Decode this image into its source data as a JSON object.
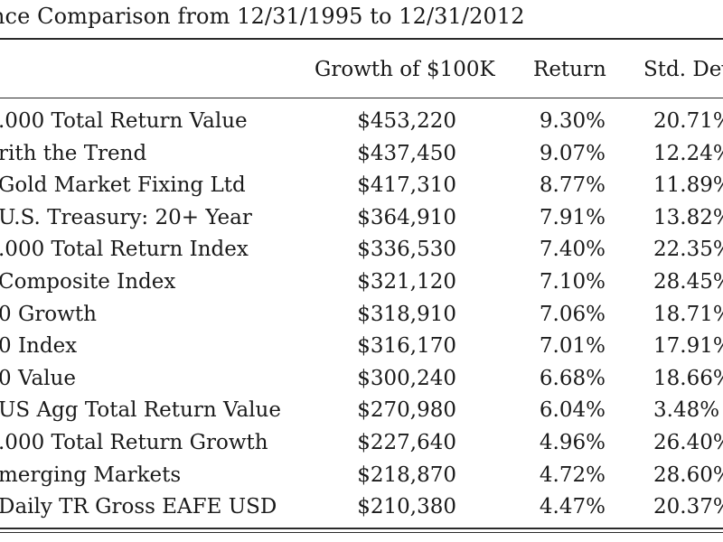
{
  "title": "nce Comparison from 12/31/1995 to 12/31/2012",
  "headers": {
    "growth": "Growth of $100K",
    "return": "Return",
    "std_dev": "Std. Dev"
  },
  "rows": [
    {
      "name": ".000 Total Return Value",
      "growth": "$453,220",
      "return": "9.30%",
      "std": "20.71%"
    },
    {
      "name": "rith the Trend",
      "growth": "$437,450",
      "return": "9.07%",
      "std": "12.24%"
    },
    {
      "name": "Gold Market Fixing Ltd",
      "growth": "$417,310",
      "return": "8.77%",
      "std": "11.89%"
    },
    {
      "name": "U.S. Treasury: 20+ Year",
      "growth": "$364,910",
      "return": "7.91%",
      "std": "13.82%"
    },
    {
      "name": ".000 Total Return Index",
      "growth": "$336,530",
      "return": "7.40%",
      "std": "22.35%"
    },
    {
      "name": "Composite Index",
      "growth": "$321,120",
      "return": "7.10%",
      "std": "28.45%"
    },
    {
      "name": "0 Growth",
      "growth": "$318,910",
      "return": "7.06%",
      "std": "18.71%"
    },
    {
      "name": "0 Index",
      "growth": "$316,170",
      "return": "7.01%",
      "std": "17.91%"
    },
    {
      "name": "0 Value",
      "growth": "$300,240",
      "return": "6.68%",
      "std": "18.66%"
    },
    {
      "name": "US Agg Total Return Value",
      "growth": "$270,980",
      "return": "6.04%",
      "std": "3.48%"
    },
    {
      "name": ".000 Total Return Growth",
      "growth": "$227,640",
      "return": "4.96%",
      "std": "26.40%"
    },
    {
      "name": "merging Markets",
      "growth": "$218,870",
      "return": "4.72%",
      "std": "28.60%"
    },
    {
      "name": "Daily TR Gross EAFE USD",
      "growth": "$210,380",
      "return": "4.47%",
      "std": "20.37%"
    }
  ]
}
